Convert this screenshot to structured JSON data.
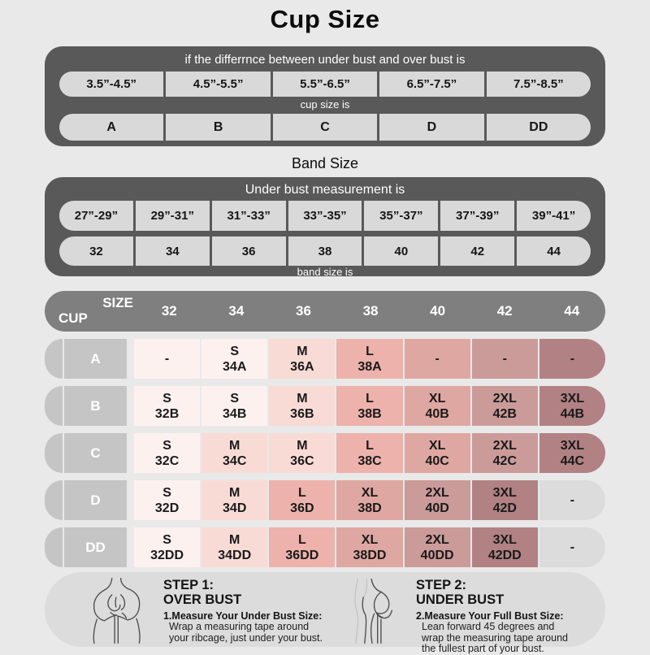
{
  "page_title": "Cup Size",
  "band_title": "Band Size",
  "colors": {
    "page_bg": "#e9e9e9",
    "panel_dark": "#595959",
    "cell_light": "#d9d9d9",
    "header_gray": "#7f7f7f",
    "label_gray": "#c5c5c5",
    "bottom_bg": "#dcdcdc",
    "text_dark": "#111111",
    "text_white": "#ffffff",
    "tones": {
      "s": "#fdf1ef",
      "m": "#f9dbd6",
      "l": "#edb2ac",
      "xl": "#dfa7a2",
      "xxl": "#cb9b9a",
      "xxxl": "#b18184",
      "gray": "#dcdcdc"
    }
  },
  "chart_data": [
    {
      "type": "table",
      "name": "cup_size_table",
      "header": "if the differrnce between under bust and over bust is",
      "columns": [
        "3.5”-4.5”",
        "4.5”-5.5”",
        "5.5”-6.5”",
        "6.5”-7.5”",
        "7.5”-8.5”"
      ],
      "mid_label": "cup size is",
      "values": [
        "A",
        "B",
        "C",
        "D",
        "DD"
      ]
    },
    {
      "type": "table",
      "name": "band_size_table",
      "header": "Under bust measurement is",
      "columns": [
        "27”-29”",
        "29”-31”",
        "31”-33”",
        "33”-35”",
        "35”-37”",
        "37”-39”",
        "39”-41”"
      ],
      "values": [
        "32",
        "34",
        "36",
        "38",
        "40",
        "42",
        "44"
      ],
      "footer_label": "band size is"
    },
    {
      "type": "table",
      "name": "size_cup_matrix",
      "corner_top": "SIZE",
      "corner_bottom": "CUP",
      "columns": [
        "32",
        "34",
        "36",
        "38",
        "40",
        "42",
        "44"
      ],
      "rows": [
        {
          "cup": "A",
          "cells": [
            {
              "size": "-",
              "code": "",
              "tone": "s"
            },
            {
              "size": "S",
              "code": "34A",
              "tone": "s"
            },
            {
              "size": "M",
              "code": "36A",
              "tone": "m"
            },
            {
              "size": "L",
              "code": "38A",
              "tone": "l"
            },
            {
              "size": "-",
              "code": "",
              "tone": "xl"
            },
            {
              "size": "-",
              "code": "",
              "tone": "xxl"
            },
            {
              "size": "-",
              "code": "",
              "tone": "xxxl"
            }
          ]
        },
        {
          "cup": "B",
          "cells": [
            {
              "size": "S",
              "code": "32B",
              "tone": "s"
            },
            {
              "size": "S",
              "code": "34B",
              "tone": "s"
            },
            {
              "size": "M",
              "code": "36B",
              "tone": "m"
            },
            {
              "size": "L",
              "code": "38B",
              "tone": "l"
            },
            {
              "size": "XL",
              "code": "40B",
              "tone": "xl"
            },
            {
              "size": "2XL",
              "code": "42B",
              "tone": "xxl"
            },
            {
              "size": "3XL",
              "code": "44B",
              "tone": "xxxl"
            }
          ]
        },
        {
          "cup": "C",
          "cells": [
            {
              "size": "S",
              "code": "32C",
              "tone": "s"
            },
            {
              "size": "M",
              "code": "34C",
              "tone": "m"
            },
            {
              "size": "M",
              "code": "36C",
              "tone": "m"
            },
            {
              "size": "L",
              "code": "38C",
              "tone": "l"
            },
            {
              "size": "XL",
              "code": "40C",
              "tone": "xl"
            },
            {
              "size": "2XL",
              "code": "42C",
              "tone": "xxl"
            },
            {
              "size": "3XL",
              "code": "44C",
              "tone": "xxxl"
            }
          ]
        },
        {
          "cup": "D",
          "cells": [
            {
              "size": "S",
              "code": "32D",
              "tone": "s"
            },
            {
              "size": "M",
              "code": "34D",
              "tone": "m"
            },
            {
              "size": "L",
              "code": "36D",
              "tone": "l"
            },
            {
              "size": "XL",
              "code": "38D",
              "tone": "xl"
            },
            {
              "size": "2XL",
              "code": "40D",
              "tone": "xxl"
            },
            {
              "size": "3XL",
              "code": "42D",
              "tone": "xxxl"
            },
            {
              "size": "-",
              "code": "",
              "tone": "gray"
            }
          ]
        },
        {
          "cup": "DD",
          "cells": [
            {
              "size": "S",
              "code": "32DD",
              "tone": "s"
            },
            {
              "size": "M",
              "code": "34DD",
              "tone": "m"
            },
            {
              "size": "L",
              "code": "36DD",
              "tone": "l"
            },
            {
              "size": "XL",
              "code": "38DD",
              "tone": "xl"
            },
            {
              "size": "2XL",
              "code": "40DD",
              "tone": "xxl"
            },
            {
              "size": "3XL",
              "code": "42DD",
              "tone": "xxxl"
            },
            {
              "size": "-",
              "code": "",
              "tone": "gray"
            }
          ]
        }
      ]
    }
  ],
  "steps": [
    {
      "step": "STEP 1:",
      "area": "OVER BUST",
      "heading": "1.Measure Your Under Bust Size:",
      "body": "Wrap a measuring tape around your ribcage, just under your bust."
    },
    {
      "step": "STEP 2:",
      "area": "UNDER BUST",
      "heading": "2.Measure Your Full Bust Size:",
      "body": "Lean forward 45 degrees and wrap the measuring tape around the fullest part of your bust."
    }
  ]
}
